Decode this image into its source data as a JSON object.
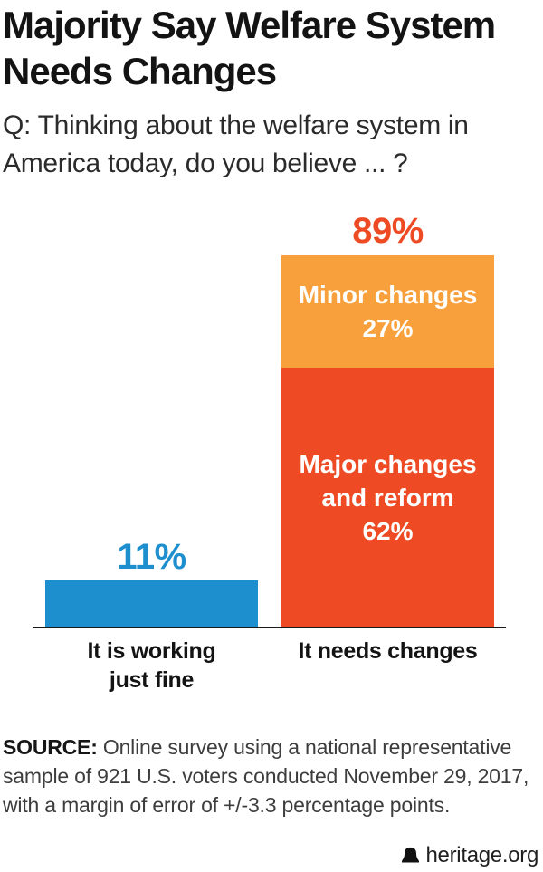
{
  "header": {
    "title_line1": "Majority Say Welfare System",
    "title_line2": "Needs Changes",
    "question_line1": "Q: Thinking about the welfare system in",
    "question_line2": "America today, do you believe ... ?"
  },
  "chart_data": {
    "type": "bar",
    "subtype": "stacked-vertical-columns",
    "unit": "percent",
    "title": "Majority Say Welfare System Needs Changes",
    "categories": [
      "It is working just fine",
      "It needs changes"
    ],
    "series": [
      {
        "name": "It is working just fine",
        "total": 11,
        "total_label": "11%",
        "color": "#1e8fce",
        "segments": [
          {
            "label": "It is working just fine",
            "value": 11,
            "color": "#1e8fce"
          }
        ]
      },
      {
        "name": "It needs changes",
        "total": 89,
        "total_label": "89%",
        "segments": [
          {
            "label": "Minor changes",
            "value": 27,
            "color": "#f8a13c"
          },
          {
            "label": "Major changes and reform",
            "value": 62,
            "color": "#ee4b24"
          }
        ]
      }
    ],
    "ylim": [
      0,
      100
    ],
    "grid": false,
    "legend": "none (labels rendered inside segments)"
  },
  "bars": {
    "left": {
      "value_label": "11%",
      "cat_line1": "It is working",
      "cat_line2": "just fine"
    },
    "right": {
      "value_label": "89%",
      "orange_line1": "Minor changes",
      "orange_line2": "27%",
      "red_line1": "Major changes",
      "red_line2": "and reform",
      "red_line3": "62%",
      "cat_label": "It needs changes"
    }
  },
  "source": {
    "label": "SOURCE:",
    "line1": "Online survey using a national representative",
    "line2": "sample of 921 U.S. voters conducted November 29, 2017,",
    "line3": "with a margin of error of +/-3.3 percentage points."
  },
  "footer": {
    "brand": "heritage.org",
    "icon": "heritage-bell-icon"
  },
  "colors": {
    "blue": "#1e8fce",
    "orange": "#f8a13c",
    "red": "#ee4b24",
    "value_label_blue": "#1e8fce",
    "value_label_red": "#ee4b24",
    "axis": "#1a1a1a",
    "background": "#ffffff",
    "text": "#131313",
    "source_text": "#3d3d3d"
  }
}
